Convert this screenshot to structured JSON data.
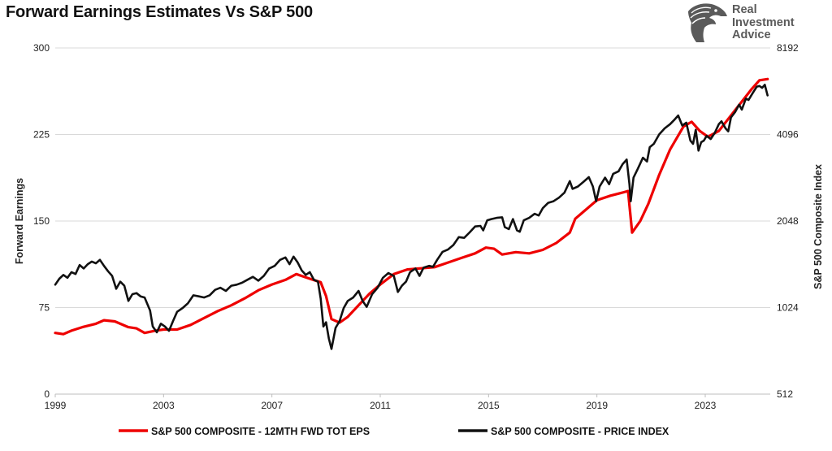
{
  "header": {
    "title": "Forward Earnings Estimates Vs S&P 500"
  },
  "logo": {
    "line1": "Real",
    "line2": "Investment",
    "line3": "Advice",
    "icon": "eagle-head-icon",
    "color": "#5a5a5a"
  },
  "chart_data": {
    "type": "line",
    "title": "Forward Earnings Estimates Vs S&P 500",
    "xlabel": "",
    "ylabel": "Forward Earnings",
    "y2label": "S&P 500  Composite Index",
    "xlim": [
      1999.0,
      2025.4
    ],
    "x_ticks": [
      "1999",
      "2003",
      "2007",
      "2011",
      "2015",
      "2019",
      "2023"
    ],
    "ylim": [
      0,
      300
    ],
    "y_ticks": [
      "0",
      "75",
      "150",
      "225",
      "300"
    ],
    "y2_scale": "log2",
    "y2lim": [
      512,
      8192
    ],
    "y2_ticks": [
      "512",
      "1024",
      "2048",
      "4096",
      "8192"
    ],
    "grid": "horizontal",
    "legend_position": "bottom",
    "series": [
      {
        "name": "S&P 500 COMPOSITE - 12MTH FWD TOT EPS",
        "axis": "left",
        "color": "#ee0000",
        "points": [
          [
            1999.0,
            53
          ],
          [
            1999.3,
            52
          ],
          [
            1999.6,
            55
          ],
          [
            2000.0,
            58
          ],
          [
            2000.5,
            61
          ],
          [
            2000.8,
            64
          ],
          [
            2001.2,
            63
          ],
          [
            2001.7,
            58
          ],
          [
            2002.0,
            57
          ],
          [
            2002.3,
            53
          ],
          [
            2002.7,
            55
          ],
          [
            2003.0,
            56
          ],
          [
            2003.5,
            56
          ],
          [
            2004.0,
            60
          ],
          [
            2004.5,
            66
          ],
          [
            2005.0,
            72
          ],
          [
            2005.5,
            77
          ],
          [
            2006.0,
            83
          ],
          [
            2006.5,
            90
          ],
          [
            2007.0,
            95
          ],
          [
            2007.5,
            99
          ],
          [
            2007.9,
            104
          ],
          [
            2008.4,
            100
          ],
          [
            2008.8,
            97
          ],
          [
            2009.0,
            85
          ],
          [
            2009.2,
            65
          ],
          [
            2009.5,
            62
          ],
          [
            2009.8,
            67
          ],
          [
            2010.2,
            77
          ],
          [
            2010.6,
            87
          ],
          [
            2011.0,
            95
          ],
          [
            2011.5,
            104
          ],
          [
            2012.0,
            108
          ],
          [
            2012.5,
            109
          ],
          [
            2013.0,
            110
          ],
          [
            2013.5,
            114
          ],
          [
            2014.0,
            118
          ],
          [
            2014.5,
            122
          ],
          [
            2014.9,
            127
          ],
          [
            2015.2,
            126
          ],
          [
            2015.5,
            121
          ],
          [
            2016.0,
            123
          ],
          [
            2016.5,
            122
          ],
          [
            2017.0,
            125
          ],
          [
            2017.5,
            131
          ],
          [
            2018.0,
            140
          ],
          [
            2018.2,
            152
          ],
          [
            2018.5,
            158
          ],
          [
            2019.0,
            168
          ],
          [
            2019.5,
            172
          ],
          [
            2020.0,
            175
          ],
          [
            2020.15,
            176
          ],
          [
            2020.3,
            140
          ],
          [
            2020.6,
            150
          ],
          [
            2020.9,
            165
          ],
          [
            2021.3,
            190
          ],
          [
            2021.7,
            212
          ],
          [
            2022.2,
            232
          ],
          [
            2022.5,
            236
          ],
          [
            2022.8,
            228
          ],
          [
            2023.1,
            223
          ],
          [
            2023.5,
            228
          ],
          [
            2023.9,
            240
          ],
          [
            2024.3,
            252
          ],
          [
            2024.7,
            264
          ],
          [
            2025.0,
            272
          ],
          [
            2025.3,
            273
          ]
        ]
      },
      {
        "name": "S&P 500 COMPOSITE - PRICE INDEX",
        "axis": "right",
        "color": "#111111",
        "points": [
          [
            1999.0,
            1230
          ],
          [
            1999.15,
            1290
          ],
          [
            1999.3,
            1330
          ],
          [
            1999.45,
            1300
          ],
          [
            1999.6,
            1360
          ],
          [
            1999.75,
            1340
          ],
          [
            1999.9,
            1440
          ],
          [
            2000.05,
            1400
          ],
          [
            2000.2,
            1450
          ],
          [
            2000.35,
            1480
          ],
          [
            2000.5,
            1460
          ],
          [
            2000.65,
            1500
          ],
          [
            2000.8,
            1430
          ],
          [
            2000.95,
            1370
          ],
          [
            2001.1,
            1320
          ],
          [
            2001.25,
            1190
          ],
          [
            2001.4,
            1260
          ],
          [
            2001.55,
            1220
          ],
          [
            2001.7,
            1080
          ],
          [
            2001.85,
            1140
          ],
          [
            2002.0,
            1150
          ],
          [
            2002.15,
            1120
          ],
          [
            2002.3,
            1110
          ],
          [
            2002.5,
            1000
          ],
          [
            2002.6,
            880
          ],
          [
            2002.75,
            840
          ],
          [
            2002.9,
            900
          ],
          [
            2003.05,
            880
          ],
          [
            2003.2,
            850
          ],
          [
            2003.35,
            920
          ],
          [
            2003.5,
            990
          ],
          [
            2003.7,
            1020
          ],
          [
            2003.9,
            1060
          ],
          [
            2004.1,
            1130
          ],
          [
            2004.3,
            1120
          ],
          [
            2004.5,
            1110
          ],
          [
            2004.7,
            1130
          ],
          [
            2004.9,
            1180
          ],
          [
            2005.1,
            1200
          ],
          [
            2005.3,
            1170
          ],
          [
            2005.5,
            1220
          ],
          [
            2005.7,
            1230
          ],
          [
            2005.9,
            1250
          ],
          [
            2006.1,
            1280
          ],
          [
            2006.3,
            1310
          ],
          [
            2006.5,
            1270
          ],
          [
            2006.7,
            1320
          ],
          [
            2006.9,
            1400
          ],
          [
            2007.1,
            1430
          ],
          [
            2007.3,
            1500
          ],
          [
            2007.5,
            1530
          ],
          [
            2007.65,
            1450
          ],
          [
            2007.8,
            1540
          ],
          [
            2007.95,
            1470
          ],
          [
            2008.1,
            1380
          ],
          [
            2008.25,
            1330
          ],
          [
            2008.4,
            1360
          ],
          [
            2008.55,
            1280
          ],
          [
            2008.7,
            1260
          ],
          [
            2008.8,
            1100
          ],
          [
            2008.9,
            880
          ],
          [
            2009.0,
            910
          ],
          [
            2009.1,
            800
          ],
          [
            2009.2,
            735
          ],
          [
            2009.35,
            870
          ],
          [
            2009.5,
            920
          ],
          [
            2009.65,
            1020
          ],
          [
            2009.8,
            1080
          ],
          [
            2010.0,
            1110
          ],
          [
            2010.2,
            1170
          ],
          [
            2010.35,
            1080
          ],
          [
            2010.5,
            1030
          ],
          [
            2010.7,
            1140
          ],
          [
            2010.9,
            1200
          ],
          [
            2011.1,
            1300
          ],
          [
            2011.3,
            1350
          ],
          [
            2011.5,
            1320
          ],
          [
            2011.65,
            1160
          ],
          [
            2011.8,
            1220
          ],
          [
            2011.95,
            1260
          ],
          [
            2012.1,
            1360
          ],
          [
            2012.3,
            1400
          ],
          [
            2012.45,
            1320
          ],
          [
            2012.6,
            1410
          ],
          [
            2012.8,
            1430
          ],
          [
            2012.95,
            1420
          ],
          [
            2013.1,
            1500
          ],
          [
            2013.3,
            1600
          ],
          [
            2013.5,
            1630
          ],
          [
            2013.7,
            1690
          ],
          [
            2013.9,
            1800
          ],
          [
            2014.1,
            1790
          ],
          [
            2014.3,
            1870
          ],
          [
            2014.5,
            1960
          ],
          [
            2014.7,
            1970
          ],
          [
            2014.8,
            1900
          ],
          [
            2014.95,
            2060
          ],
          [
            2015.1,
            2080
          ],
          [
            2015.3,
            2100
          ],
          [
            2015.5,
            2110
          ],
          [
            2015.6,
            1950
          ],
          [
            2015.75,
            1920
          ],
          [
            2015.9,
            2080
          ],
          [
            2016.05,
            1900
          ],
          [
            2016.15,
            1880
          ],
          [
            2016.3,
            2060
          ],
          [
            2016.5,
            2100
          ],
          [
            2016.7,
            2170
          ],
          [
            2016.85,
            2140
          ],
          [
            2017.0,
            2270
          ],
          [
            2017.2,
            2370
          ],
          [
            2017.4,
            2400
          ],
          [
            2017.6,
            2470
          ],
          [
            2017.8,
            2570
          ],
          [
            2018.0,
            2820
          ],
          [
            2018.1,
            2650
          ],
          [
            2018.3,
            2700
          ],
          [
            2018.5,
            2800
          ],
          [
            2018.7,
            2910
          ],
          [
            2018.85,
            2700
          ],
          [
            2018.97,
            2400
          ],
          [
            2019.1,
            2700
          ],
          [
            2019.3,
            2900
          ],
          [
            2019.45,
            2750
          ],
          [
            2019.6,
            2990
          ],
          [
            2019.8,
            3050
          ],
          [
            2019.95,
            3230
          ],
          [
            2020.1,
            3350
          ],
          [
            2020.2,
            2750
          ],
          [
            2020.25,
            2400
          ],
          [
            2020.35,
            2900
          ],
          [
            2020.5,
            3100
          ],
          [
            2020.7,
            3400
          ],
          [
            2020.85,
            3300
          ],
          [
            2020.95,
            3700
          ],
          [
            2021.1,
            3800
          ],
          [
            2021.3,
            4100
          ],
          [
            2021.5,
            4300
          ],
          [
            2021.7,
            4450
          ],
          [
            2021.85,
            4600
          ],
          [
            2022.0,
            4770
          ],
          [
            2022.15,
            4400
          ],
          [
            2022.3,
            4500
          ],
          [
            2022.45,
            3900
          ],
          [
            2022.55,
            3800
          ],
          [
            2022.65,
            4250
          ],
          [
            2022.75,
            3600
          ],
          [
            2022.85,
            3850
          ],
          [
            2022.95,
            3900
          ],
          [
            2023.05,
            4050
          ],
          [
            2023.2,
            3950
          ],
          [
            2023.35,
            4150
          ],
          [
            2023.5,
            4450
          ],
          [
            2023.6,
            4550
          ],
          [
            2023.75,
            4300
          ],
          [
            2023.85,
            4200
          ],
          [
            2023.95,
            4700
          ],
          [
            2024.1,
            4900
          ],
          [
            2024.25,
            5200
          ],
          [
            2024.35,
            5000
          ],
          [
            2024.5,
            5460
          ],
          [
            2024.6,
            5400
          ],
          [
            2024.75,
            5700
          ],
          [
            2024.9,
            6000
          ],
          [
            2025.0,
            6040
          ],
          [
            2025.1,
            5950
          ],
          [
            2025.2,
            6100
          ],
          [
            2025.3,
            5600
          ]
        ]
      }
    ]
  }
}
